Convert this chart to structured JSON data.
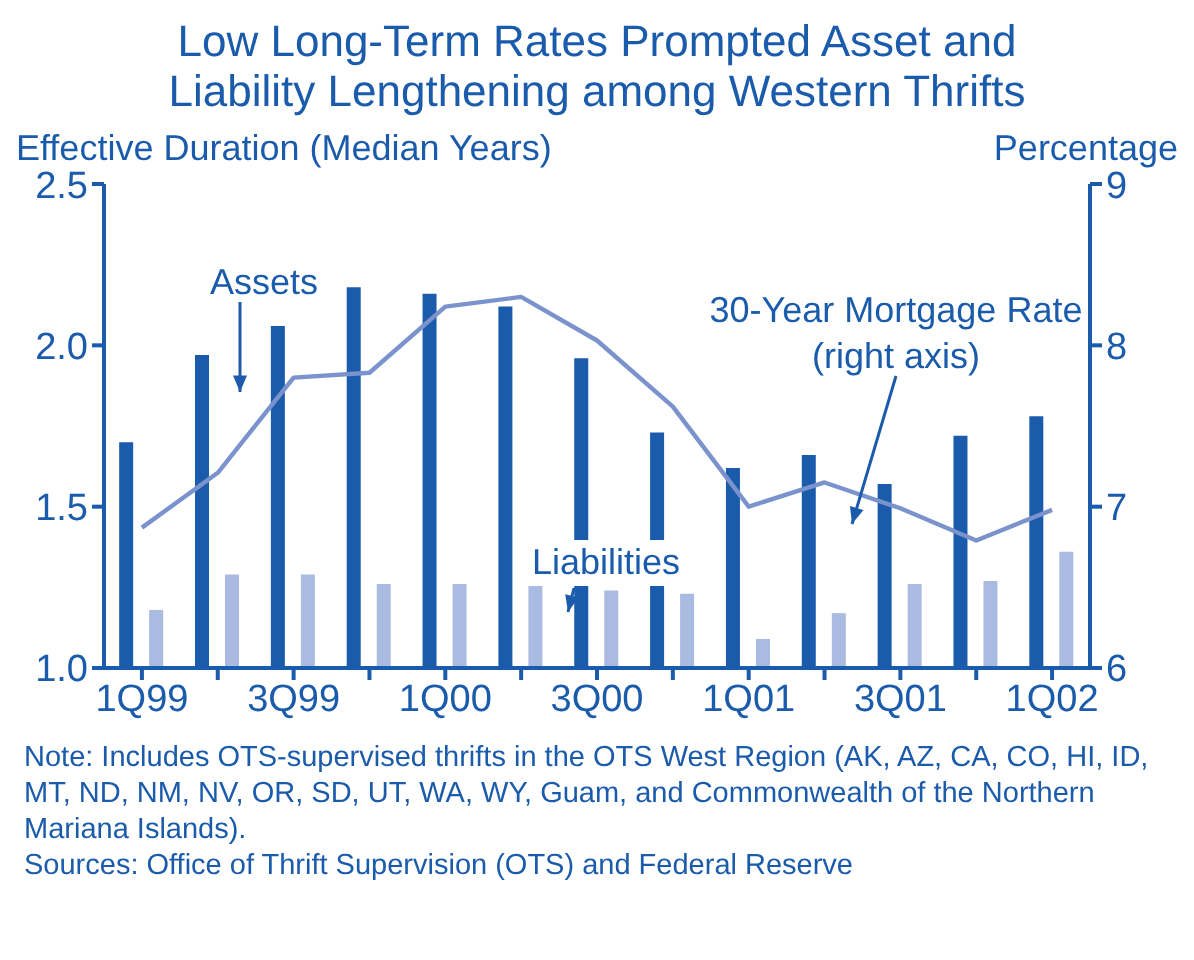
{
  "chart_data": {
    "type": "bar",
    "title": "Low Long-Term Rates Prompted Asset and Liability Lengthening among Western Thrifts",
    "ylabel": "Effective Duration (Median Years)",
    "y2label": "Percentage",
    "categories": [
      "1Q99",
      null,
      "3Q99",
      null,
      "1Q00",
      null,
      "3Q00",
      null,
      "1Q01",
      null,
      "3Q01",
      null,
      "1Q02"
    ],
    "series": [
      {
        "name": "Assets",
        "color": "#1a5bab",
        "values": [
          1.7,
          1.97,
          2.06,
          2.18,
          2.16,
          2.12,
          1.96,
          1.73,
          1.62,
          1.66,
          1.57,
          1.72,
          1.78
        ]
      },
      {
        "name": "Liabilities",
        "color": "#a9bbe0",
        "values": [
          1.18,
          1.29,
          1.29,
          1.26,
          1.26,
          1.26,
          1.24,
          1.23,
          1.09,
          1.17,
          1.26,
          1.27,
          1.36
        ]
      },
      {
        "name": "30-Year Mortgage Rate (right axis)",
        "type": "line",
        "axis": "y2",
        "color": "#7b93cc",
        "values": [
          6.87,
          7.21,
          7.8,
          7.83,
          8.24,
          8.3,
          8.03,
          7.62,
          7.0,
          7.15,
          6.99,
          6.79,
          6.98
        ]
      }
    ],
    "ylim": [
      1,
      2.5
    ],
    "yticks": [
      {
        "value": 1,
        "label": "1.0"
      },
      1.5,
      {
        "value": 2,
        "label": "2.0"
      },
      2.5
    ],
    "y2lim": [
      6,
      9
    ],
    "y2ticks": [
      6,
      7,
      8,
      9
    ],
    "grid": false,
    "legend": false,
    "marker": "none",
    "annotations": [
      "Note: Includes OTS-supervised thrifts in the OTS West Region (AK, AZ, CA, CO, HI, ID, MT, ND, NM, NV, OR, SD, UT, WA, WY, Guam, and Commonwealth of the Northern Mariana Islands).",
      "Sources: Office of Thrift Supervision (OTS) and Federal Reserve"
    ]
  }
}
